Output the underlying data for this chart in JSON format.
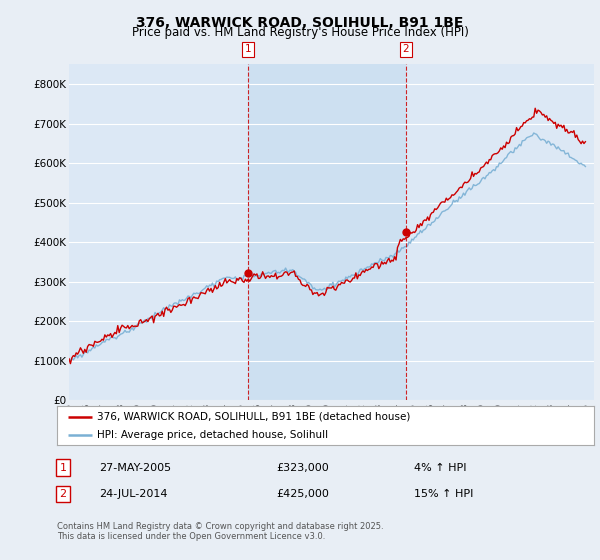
{
  "title": "376, WARWICK ROAD, SOLIHULL, B91 1BE",
  "subtitle": "Price paid vs. HM Land Registry's House Price Index (HPI)",
  "ylim": [
    0,
    850000
  ],
  "yticks": [
    0,
    100000,
    200000,
    300000,
    400000,
    500000,
    600000,
    700000,
    800000
  ],
  "ytick_labels": [
    "£0",
    "£100K",
    "£200K",
    "£300K",
    "£400K",
    "£500K",
    "£600K",
    "£700K",
    "£800K"
  ],
  "background_color": "#e8eef5",
  "plot_bg_color": "#dce8f5",
  "shade_color": "#c8ddf0",
  "grid_color": "#ffffff",
  "red_color": "#cc0000",
  "blue_color": "#7ab0d4",
  "vline_color": "#cc0000",
  "xmin": 1995,
  "xmax": 2025.5,
  "marker1_date": 2005.41,
  "marker2_date": 2014.56,
  "marker1_price": 323000,
  "marker2_price": 425000,
  "legend_label_red": "376, WARWICK ROAD, SOLIHULL, B91 1BE (detached house)",
  "legend_label_blue": "HPI: Average price, detached house, Solihull",
  "annotation1_num": "1",
  "annotation2_num": "2",
  "ann1_date_str": "27-MAY-2005",
  "ann1_price_str": "£323,000",
  "ann1_hpi_str": "4% ↑ HPI",
  "ann2_date_str": "24-JUL-2014",
  "ann2_price_str": "£425,000",
  "ann2_hpi_str": "15% ↑ HPI",
  "footer": "Contains HM Land Registry data © Crown copyright and database right 2025.\nThis data is licensed under the Open Government Licence v3.0.",
  "title_fontsize": 10,
  "subtitle_fontsize": 8.5,
  "tick_fontsize": 7.5,
  "legend_fontsize": 7.5,
  "ann_fontsize": 8,
  "footer_fontsize": 6
}
